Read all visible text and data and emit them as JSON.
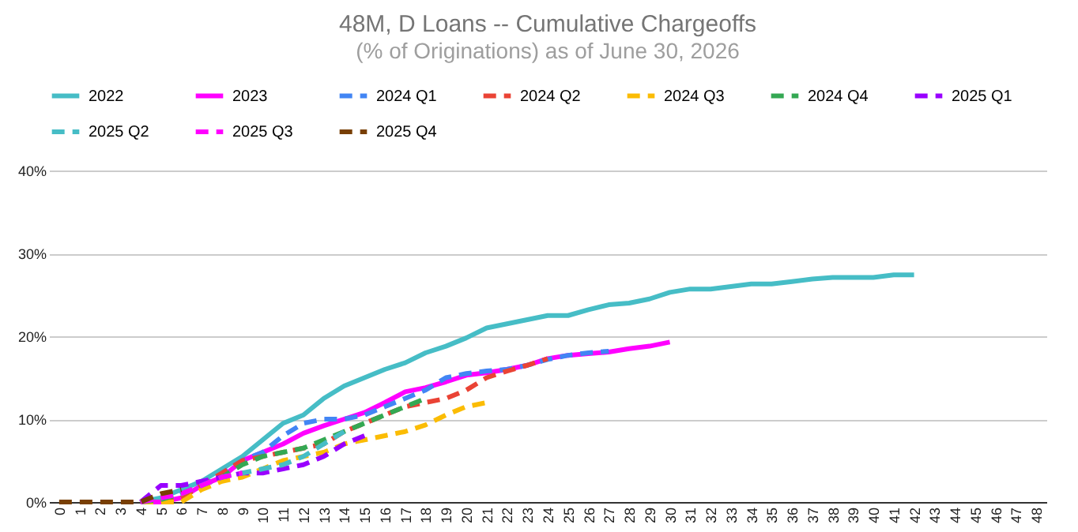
{
  "chart_data": {
    "type": "line",
    "title": "48M, D Loans -- Cumulative Chargeoffs",
    "subtitle": "(% of Originations) as of June 30, 2026",
    "categories": [
      "0",
      "1",
      "2",
      "3",
      "4",
      "5",
      "6",
      "7",
      "8",
      "9",
      "10",
      "11",
      "12",
      "13",
      "14",
      "15",
      "16",
      "17",
      "18",
      "19",
      "20",
      "21",
      "22",
      "23",
      "24",
      "25",
      "26",
      "27",
      "28",
      "29",
      "30",
      "31",
      "32",
      "33",
      "34",
      "35",
      "36",
      "37",
      "38",
      "39",
      "40",
      "41",
      "42",
      "43",
      "44",
      "45",
      "46",
      "47",
      "48"
    ],
    "ylim": [
      0,
      40
    ],
    "yticks": [
      {
        "value": 0,
        "label": "0%"
      },
      {
        "value": 10,
        "label": "10%"
      },
      {
        "value": 20,
        "label": "20%"
      },
      {
        "value": 30,
        "label": "30%"
      },
      {
        "value": 40,
        "label": "40%"
      }
    ],
    "grid": "y",
    "legend": "top",
    "series": [
      {
        "name": "2022",
        "color": "#46bdc6",
        "line_style": "solid",
        "values": [
          null,
          null,
          null,
          null,
          0,
          0.5,
          1.5,
          2.5,
          4,
          5.5,
          7.5,
          9.5,
          10.5,
          12.5,
          14,
          15,
          16,
          16.8,
          18,
          18.8,
          19.8,
          21,
          21.5,
          22,
          22.5,
          22.5,
          23.2,
          23.8,
          24,
          24.5,
          25.3,
          25.7,
          25.7,
          26,
          26.3,
          26.3,
          26.6,
          26.9,
          27.1,
          27.1,
          27.1,
          27.4,
          27.4,
          null,
          null,
          null,
          null,
          null,
          null
        ]
      },
      {
        "name": "2023",
        "color": "#ff00ff",
        "line_style": "solid",
        "values": [
          null,
          null,
          null,
          null,
          0,
          0,
          0.5,
          2,
          3,
          5,
          6,
          7,
          8.3,
          9.2,
          10,
          10.8,
          12,
          13.3,
          13.8,
          14.5,
          15.3,
          15.6,
          16,
          16.5,
          17.3,
          17.7,
          17.9,
          18.1,
          18.5,
          18.8,
          19.3,
          null,
          null,
          null,
          null,
          null,
          null,
          null,
          null,
          null,
          null,
          null,
          null,
          null,
          null,
          null,
          null,
          null,
          null
        ]
      },
      {
        "name": "2024 Q1",
        "color": "#4285f4",
        "line_style": "dashed",
        "values": [
          null,
          null,
          null,
          null,
          0,
          0,
          1,
          2,
          3.5,
          5,
          6,
          8,
          9.5,
          10,
          10,
          10.5,
          11.5,
          12.5,
          13.5,
          15,
          15.5,
          15.8,
          16,
          16.5,
          17.2,
          17.7,
          18,
          18.2,
          null,
          null,
          null,
          null,
          null,
          null,
          null,
          null,
          null,
          null,
          null,
          null,
          null,
          null,
          null,
          null,
          null,
          null,
          null,
          null,
          null
        ]
      },
      {
        "name": "2024 Q2",
        "color": "#ea4335",
        "line_style": "dashed",
        "values": [
          null,
          null,
          null,
          null,
          0,
          0,
          0.5,
          2,
          3.5,
          5,
          5.5,
          6,
          6.5,
          7,
          8.5,
          9.5,
          10.5,
          11.5,
          12,
          12.5,
          13.5,
          15,
          15.8,
          16.5,
          17.3,
          null,
          null,
          null,
          null,
          null,
          null,
          null,
          null,
          null,
          null,
          null,
          null,
          null,
          null,
          null,
          null,
          null,
          null,
          null,
          null,
          null,
          null,
          null,
          null
        ]
      },
      {
        "name": "2024 Q3",
        "color": "#fbbc04",
        "line_style": "dashed",
        "values": [
          null,
          null,
          null,
          null,
          0,
          0,
          0,
          1.5,
          2.5,
          3,
          4,
          5,
          5.5,
          6,
          7,
          7.5,
          8,
          8.5,
          9.3,
          10.5,
          11.5,
          12,
          null,
          null,
          null,
          null,
          null,
          null,
          null,
          null,
          null,
          null,
          null,
          null,
          null,
          null,
          null,
          null,
          null,
          null,
          null,
          null,
          null,
          null,
          null,
          null,
          null,
          null,
          null
        ]
      },
      {
        "name": "2024 Q4",
        "color": "#34a853",
        "line_style": "dashed",
        "values": [
          null,
          null,
          null,
          null,
          0,
          0.3,
          1,
          2,
          3,
          4.5,
          5.5,
          6,
          6.5,
          7.5,
          8.5,
          9.5,
          10.5,
          11.5,
          12.5,
          null,
          null,
          null,
          null,
          null,
          null,
          null,
          null,
          null,
          null,
          null,
          null,
          null,
          null,
          null,
          null,
          null,
          null,
          null,
          null,
          null,
          null,
          null,
          null,
          null,
          null,
          null,
          null,
          null,
          null
        ]
      },
      {
        "name": "2025 Q1",
        "color": "#9900ff",
        "line_style": "dashed",
        "values": [
          null,
          null,
          null,
          null,
          0,
          2,
          2,
          2.5,
          3,
          3.5,
          3.5,
          4,
          4.5,
          5.5,
          7,
          8,
          null,
          null,
          null,
          null,
          null,
          null,
          null,
          null,
          null,
          null,
          null,
          null,
          null,
          null,
          null,
          null,
          null,
          null,
          null,
          null,
          null,
          null,
          null,
          null,
          null,
          null,
          null,
          null,
          null,
          null,
          null,
          null,
          null
        ]
      },
      {
        "name": "2025 Q2",
        "color": "#46bdc6",
        "line_style": "dashed",
        "values": [
          null,
          null,
          null,
          null,
          0,
          0.5,
          1,
          2,
          3,
          3.5,
          4,
          4.5,
          5.5,
          7,
          8.5,
          null,
          null,
          null,
          null,
          null,
          null,
          null,
          null,
          null,
          null,
          null,
          null,
          null,
          null,
          null,
          null,
          null,
          null,
          null,
          null,
          null,
          null,
          null,
          null,
          null,
          null,
          null,
          null,
          null,
          null,
          null,
          null,
          null,
          null
        ]
      },
      {
        "name": "2025 Q3",
        "color": "#ff00ff",
        "line_style": "dashed",
        "values": [
          null,
          null,
          null,
          null,
          0,
          0.5,
          1,
          2,
          3,
          3.5,
          null,
          null,
          null,
          null,
          null,
          null,
          null,
          null,
          null,
          null,
          null,
          null,
          null,
          null,
          null,
          null,
          null,
          null,
          null,
          null,
          null,
          null,
          null,
          null,
          null,
          null,
          null,
          null,
          null,
          null,
          null,
          null,
          null,
          null,
          null,
          null,
          null,
          null,
          null
        ]
      },
      {
        "name": "2025 Q4",
        "color": "#783f04",
        "line_style": "dashed",
        "values": [
          0,
          0,
          0,
          0,
          0,
          1,
          1.5,
          null,
          null,
          null,
          null,
          null,
          null,
          null,
          null,
          null,
          null,
          null,
          null,
          null,
          null,
          null,
          null,
          null,
          null,
          null,
          null,
          null,
          null,
          null,
          null,
          null,
          null,
          null,
          null,
          null,
          null,
          null,
          null,
          null,
          null,
          null,
          null,
          null,
          null,
          null,
          null,
          null,
          null
        ]
      }
    ]
  }
}
